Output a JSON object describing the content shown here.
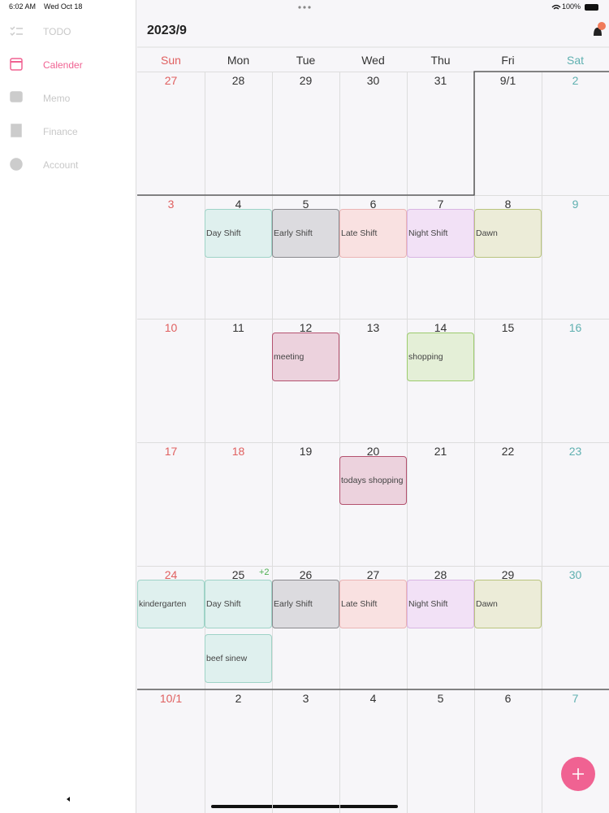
{
  "status": {
    "time": "6:02 AM",
    "date": "Wed Oct 18",
    "battery": "100%"
  },
  "sidebar": {
    "items": [
      {
        "label": "TODO",
        "active": false
      },
      {
        "label": "Calender",
        "active": true
      },
      {
        "label": "Memo",
        "active": false
      },
      {
        "label": "Finance",
        "active": false
      },
      {
        "label": "Account",
        "active": false
      }
    ]
  },
  "header": {
    "title": "2023/9"
  },
  "calendar": {
    "weekdays": [
      "Sun",
      "Mon",
      "Tue",
      "Wed",
      "Thu",
      "Fri",
      "Sat"
    ],
    "weeks": [
      {
        "days": [
          {
            "label": "27"
          },
          {
            "label": "28"
          },
          {
            "label": "29"
          },
          {
            "label": "30"
          },
          {
            "label": "31"
          },
          {
            "label": "9/1"
          },
          {
            "label": "2"
          }
        ]
      },
      {
        "days": [
          {
            "label": "3"
          },
          {
            "label": "4",
            "events": [
              {
                "label": "Day Shift",
                "fill": "#dff0ee",
                "border": "#9fd3c7"
              }
            ]
          },
          {
            "label": "5",
            "events": [
              {
                "label": "Early Shift",
                "fill": "#dcdbdf",
                "border": "#8a8a8e"
              }
            ]
          },
          {
            "label": "6",
            "events": [
              {
                "label": "Late Shift",
                "fill": "#f9e1e1",
                "border": "#ebb5b5"
              }
            ]
          },
          {
            "label": "7",
            "events": [
              {
                "label": "Night Shift",
                "fill": "#f2e1f6",
                "border": "#d9b5e3"
              }
            ]
          },
          {
            "label": "8",
            "events": [
              {
                "label": "Dawn",
                "fill": "#ececd8",
                "border": "#b9c47e"
              }
            ]
          },
          {
            "label": "9"
          }
        ]
      },
      {
        "days": [
          {
            "label": "10"
          },
          {
            "label": "11"
          },
          {
            "label": "12",
            "events": [
              {
                "label": "meeting",
                "fill": "#ecd2dd",
                "border": "#b4526f"
              }
            ]
          },
          {
            "label": "13"
          },
          {
            "label": "14",
            "events": [
              {
                "label": "shopping",
                "fill": "#e4efd7",
                "border": "#9ccb6e"
              }
            ]
          },
          {
            "label": "15"
          },
          {
            "label": "16"
          }
        ]
      },
      {
        "days": [
          {
            "label": "17"
          },
          {
            "label": "18",
            "holiday": true
          },
          {
            "label": "19"
          },
          {
            "label": "20",
            "events": [
              {
                "label": "todays shopping",
                "fill": "#ecd2dd",
                "border": "#b4526f"
              }
            ]
          },
          {
            "label": "21"
          },
          {
            "label": "22"
          },
          {
            "label": "23"
          }
        ]
      },
      {
        "days": [
          {
            "label": "24",
            "events": [
              {
                "label": "kindergarten",
                "fill": "#dff0ee",
                "border": "#9fd3c7"
              }
            ]
          },
          {
            "label": "25",
            "more": "+2",
            "events": [
              {
                "label": "Day Shift",
                "fill": "#dff0ee",
                "border": "#9fd3c7"
              },
              {
                "label": "beef sinew",
                "fill": "#dff0ee",
                "border": "#9fd3c7"
              }
            ]
          },
          {
            "label": "26",
            "events": [
              {
                "label": "Early Shift",
                "fill": "#dcdbdf",
                "border": "#8a8a8e"
              }
            ]
          },
          {
            "label": "27",
            "events": [
              {
                "label": "Late Shift",
                "fill": "#f9e1e1",
                "border": "#ebb5b5"
              }
            ]
          },
          {
            "label": "28",
            "events": [
              {
                "label": "Night Shift",
                "fill": "#f2e1f6",
                "border": "#d9b5e3"
              }
            ]
          },
          {
            "label": "29",
            "events": [
              {
                "label": "Dawn",
                "fill": "#ececd8",
                "border": "#b9c47e"
              }
            ]
          },
          {
            "label": "30"
          }
        ]
      },
      {
        "days": [
          {
            "label": "10/1"
          },
          {
            "label": "2"
          },
          {
            "label": "3"
          },
          {
            "label": "4"
          },
          {
            "label": "5"
          },
          {
            "label": "6"
          },
          {
            "label": "7"
          }
        ]
      }
    ]
  }
}
